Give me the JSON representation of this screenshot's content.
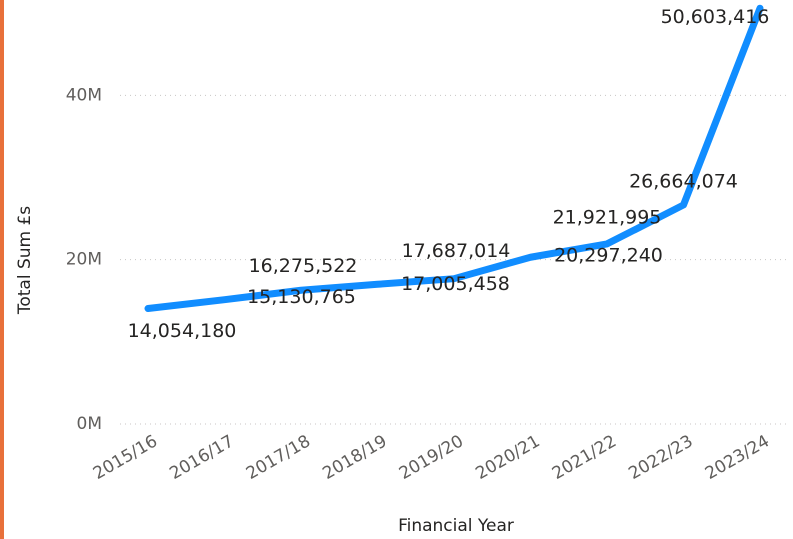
{
  "chart_data": {
    "type": "line",
    "x_label": "Financial Year",
    "y_label": "Total Sum £s",
    "categories": [
      "2015/16",
      "2016/17",
      "2017/18",
      "2018/19",
      "2019/20",
      "2020/21",
      "2021/22",
      "2022/23",
      "2023/24"
    ],
    "series": [
      {
        "name": "Total Sum £s",
        "color": "#118dff",
        "values": [
          14054180,
          15130765,
          16275522,
          17005458,
          17687014,
          20297240,
          21921995,
          26664074,
          50603416
        ],
        "value_labels": [
          "14,054,180",
          "15,130,765",
          "16,275,522",
          "17,005,458",
          "17,687,014",
          "20,297,240",
          "21,921,995",
          "26,664,074",
          "50,603,416"
        ]
      }
    ],
    "ylim": [
      0,
      51000000
    ],
    "yticks": [
      {
        "value": 0,
        "label": "0M"
      },
      {
        "value": 20000000,
        "label": "20M"
      },
      {
        "value": 40000000,
        "label": "40M"
      }
    ],
    "grid": true
  }
}
